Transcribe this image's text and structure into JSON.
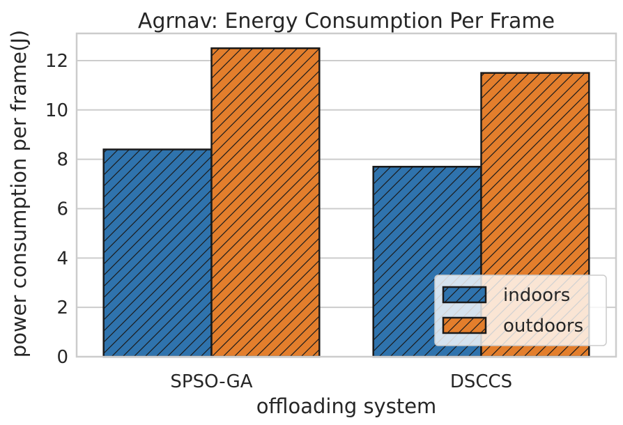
{
  "chart_data": {
    "type": "bar",
    "title": "Agrnav: Energy Consumption Per Frame",
    "xlabel": "offloading system",
    "ylabel": "power consumption per frame(J)",
    "categories": [
      "SPSO-GA",
      "DSCCS"
    ],
    "series": [
      {
        "name": "indoors",
        "values": [
          8.4,
          7.7
        ],
        "color": "#2f73ad"
      },
      {
        "name": "outdoors",
        "values": [
          12.5,
          11.5
        ],
        "color": "#e37e2c"
      }
    ],
    "ylim": [
      0,
      13.1
    ],
    "yticks": [
      0,
      2,
      4,
      6,
      8,
      10,
      12
    ],
    "grid": "horizontal",
    "hatch": "diagonal",
    "legend_position": "bottom-right"
  }
}
